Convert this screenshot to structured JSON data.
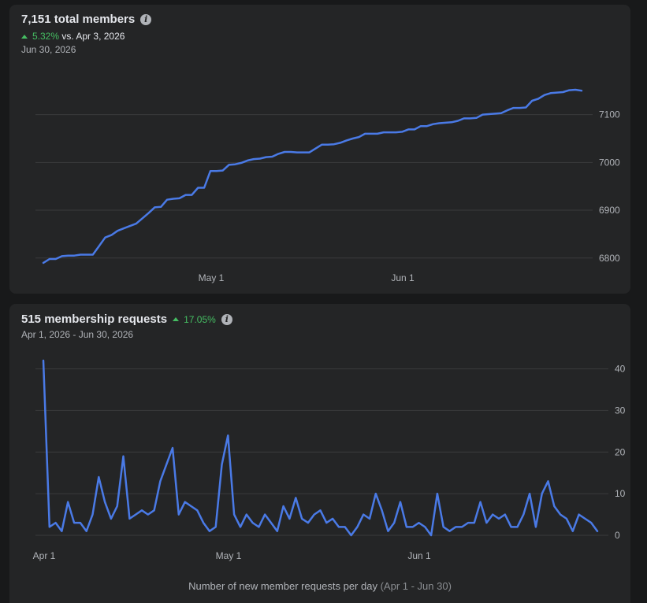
{
  "members": {
    "title": "7,151 total members",
    "change_pct": "5.32%",
    "change_text": "vs. Apr 3, 2026",
    "date": "Jun 30, 2026"
  },
  "requests": {
    "title": "515 membership requests",
    "change_pct": "17.05%",
    "date_range": "Apr 1, 2026 - Jun 30, 2026",
    "caption_main": "Number of new member requests per day",
    "caption_range": "(Apr 1 - Jun 30)"
  },
  "chart_data": [
    {
      "type": "line",
      "title": "7,151 total members",
      "x_ticks": [
        "May 1",
        "Jun 1"
      ],
      "y_ticks": [
        6800,
        6900,
        7000,
        7100
      ],
      "ylim": [
        6770,
        7180
      ],
      "x_start": "Apr 3",
      "values": [
        6790,
        6798,
        6798,
        6804,
        6805,
        6805,
        6807,
        6807,
        6807,
        6825,
        6843,
        6848,
        6857,
        6862,
        6867,
        6872,
        6883,
        6894,
        6906,
        6907,
        6922,
        6924,
        6925,
        6932,
        6932,
        6947,
        6947,
        6982,
        6982,
        6983,
        6995,
        6996,
        6999,
        7004,
        7007,
        7008,
        7011,
        7012,
        7018,
        7022,
        7022,
        7021,
        7021,
        7021,
        7029,
        7037,
        7037,
        7038,
        7041,
        7046,
        7050,
        7053,
        7060,
        7060,
        7060,
        7063,
        7063,
        7063,
        7064,
        7069,
        7069,
        7076,
        7076,
        7080,
        7082,
        7083,
        7084,
        7087,
        7092,
        7092,
        7093,
        7100,
        7101,
        7102,
        7103,
        7109,
        7114,
        7114,
        7115,
        7129,
        7133,
        7141,
        7145,
        7146,
        7147,
        7151,
        7152,
        7150
      ],
      "grid": true,
      "color": "#4a7ae6"
    },
    {
      "type": "line",
      "title": "515 membership requests",
      "x_ticks": [
        "Apr 1",
        "May 1",
        "Jun 1"
      ],
      "y_ticks": [
        0,
        10,
        20,
        30,
        40
      ],
      "ylim": [
        0,
        42
      ],
      "xlabel": "Number of new member requests per day (Apr 1 - Jun 30)",
      "values": [
        42,
        2,
        3,
        1,
        8,
        3,
        3,
        1,
        5,
        14,
        8,
        4,
        7,
        19,
        4,
        5,
        6,
        5,
        6,
        13,
        17,
        21,
        5,
        8,
        7,
        6,
        3,
        1,
        2,
        17,
        24,
        5,
        2,
        5,
        3,
        2,
        5,
        3,
        1,
        7,
        4,
        9,
        4,
        3,
        5,
        6,
        3,
        4,
        2,
        2,
        0,
        2,
        5,
        4,
        10,
        6,
        1,
        3,
        8,
        2,
        2,
        3,
        2,
        0,
        10,
        2,
        1,
        2,
        2,
        3,
        3,
        8,
        3,
        5,
        4,
        5,
        2,
        2,
        5,
        10,
        2,
        10,
        13,
        7,
        5,
        4,
        1,
        5,
        4,
        3,
        1
      ],
      "grid": true,
      "color": "#4a7ae6"
    }
  ]
}
